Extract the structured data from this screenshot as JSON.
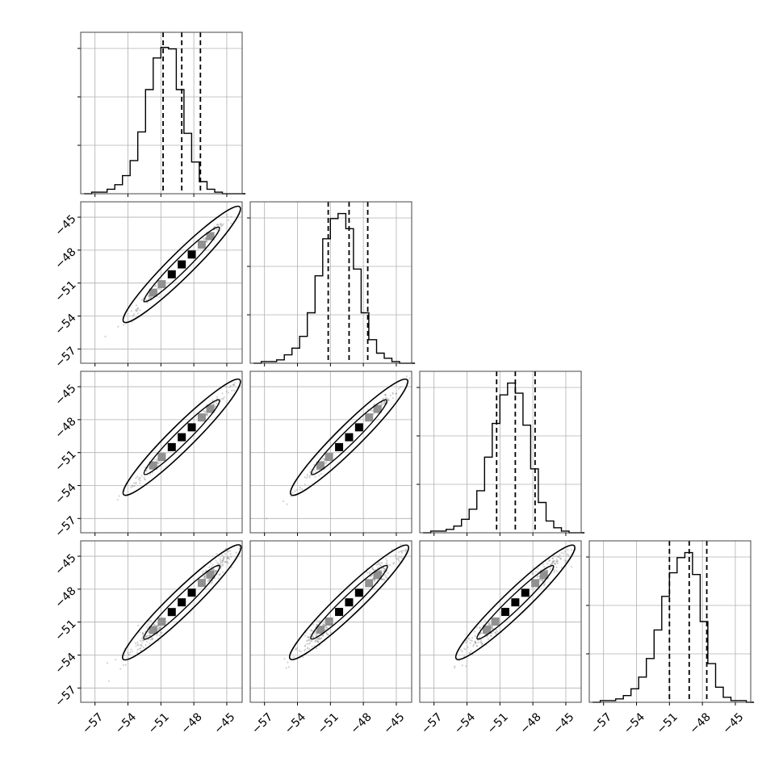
{
  "chart_data": {
    "type": "corner",
    "n_params": 4,
    "param_labels": [
      "",
      "",
      "",
      ""
    ],
    "xlim": [
      -58.3,
      -43.6
    ],
    "ylim": [
      -58.3,
      -43.6
    ],
    "ticks": [
      -57,
      -54,
      -51,
      -48,
      -45
    ],
    "tick_labels": [
      "−57",
      "−54",
      "−51",
      "−48",
      "−45"
    ],
    "grid": true,
    "colors": {
      "line": "#000000",
      "grid": "#b0b0b0",
      "scatter": "#808080",
      "density_mid": "#909090"
    },
    "marginals": [
      {
        "param_index": 0,
        "quantiles": [
          -50.8,
          -49.1,
          -47.4
        ],
        "bin_edges": [
          -58.0,
          -57.3,
          -56.6,
          -55.9,
          -55.2,
          -54.5,
          -53.8,
          -53.1,
          -52.4,
          -51.7,
          -51.0,
          -50.3,
          -49.6,
          -48.9,
          -48.2,
          -47.5,
          -46.8,
          -46.1,
          -45.4,
          -44.7,
          -44.0,
          -43.3
        ],
        "counts": [
          0,
          1,
          1,
          3,
          6,
          12,
          22,
          41,
          69,
          90,
          97,
          96,
          69,
          40,
          21,
          8,
          3,
          1,
          0,
          0,
          0
        ],
        "ymax": 107
      },
      {
        "param_index": 1,
        "quantiles": [
          -51.2,
          -49.3,
          -47.6
        ],
        "bin_edges": [
          -58.0,
          -57.3,
          -56.6,
          -55.9,
          -55.2,
          -54.5,
          -53.8,
          -53.1,
          -52.4,
          -51.7,
          -51.0,
          -50.3,
          -49.6,
          -48.9,
          -48.2,
          -47.5,
          -46.8,
          -46.1,
          -45.4,
          -44.7,
          -44.0,
          -43.3
        ],
        "counts": [
          0,
          1,
          1,
          2,
          5,
          9,
          16,
          30,
          52,
          74,
          86,
          89,
          80,
          56,
          30,
          14,
          6,
          3,
          1,
          0,
          0
        ],
        "ymax": 96
      },
      {
        "param_index": 2,
        "quantiles": [
          -51.3,
          -49.6,
          -47.8
        ],
        "bin_edges": [
          -58.0,
          -57.3,
          -56.6,
          -55.9,
          -55.2,
          -54.5,
          -53.8,
          -53.1,
          -52.4,
          -51.7,
          -51.0,
          -50.3,
          -49.6,
          -48.9,
          -48.2,
          -47.5,
          -46.8,
          -46.1,
          -45.4,
          -44.7,
          -44.0,
          -43.3
        ],
        "counts": [
          0,
          1,
          1,
          2,
          4,
          8,
          14,
          25,
          45,
          65,
          82,
          89,
          83,
          64,
          38,
          18,
          7,
          3,
          1,
          0,
          0
        ],
        "ymax": 96
      },
      {
        "param_index": 3,
        "quantiles": [
          -51.0,
          -49.2,
          -47.6
        ],
        "bin_edges": [
          -58.0,
          -57.3,
          -56.6,
          -55.9,
          -55.2,
          -54.5,
          -53.8,
          -53.1,
          -52.4,
          -51.7,
          -51.0,
          -50.3,
          -49.6,
          -48.9,
          -48.2,
          -47.5,
          -46.8,
          -46.1,
          -45.4,
          -44.7,
          -44.0,
          -43.3
        ],
        "counts": [
          0,
          1,
          1,
          2,
          4,
          8,
          15,
          26,
          43,
          63,
          77,
          86,
          89,
          76,
          48,
          23,
          9,
          3,
          1,
          1,
          0
        ],
        "ymax": 96
      }
    ],
    "joints": [
      {
        "row": 1,
        "col": 0,
        "center": [
          -49.1,
          -49.3
        ],
        "spread": 2.0,
        "corr": 0.99
      },
      {
        "row": 2,
        "col": 0,
        "center": [
          -49.1,
          -49.6
        ],
        "spread": 2.0,
        "corr": 0.99
      },
      {
        "row": 2,
        "col": 1,
        "center": [
          -49.3,
          -49.6
        ],
        "spread": 2.0,
        "corr": 0.99
      },
      {
        "row": 3,
        "col": 0,
        "center": [
          -49.1,
          -49.2
        ],
        "spread": 2.0,
        "corr": 0.97
      },
      {
        "row": 3,
        "col": 1,
        "center": [
          -49.3,
          -49.2
        ],
        "spread": 2.0,
        "corr": 0.96
      },
      {
        "row": 3,
        "col": 2,
        "center": [
          -49.6,
          -49.2
        ],
        "spread": 2.0,
        "corr": 0.96
      }
    ]
  }
}
